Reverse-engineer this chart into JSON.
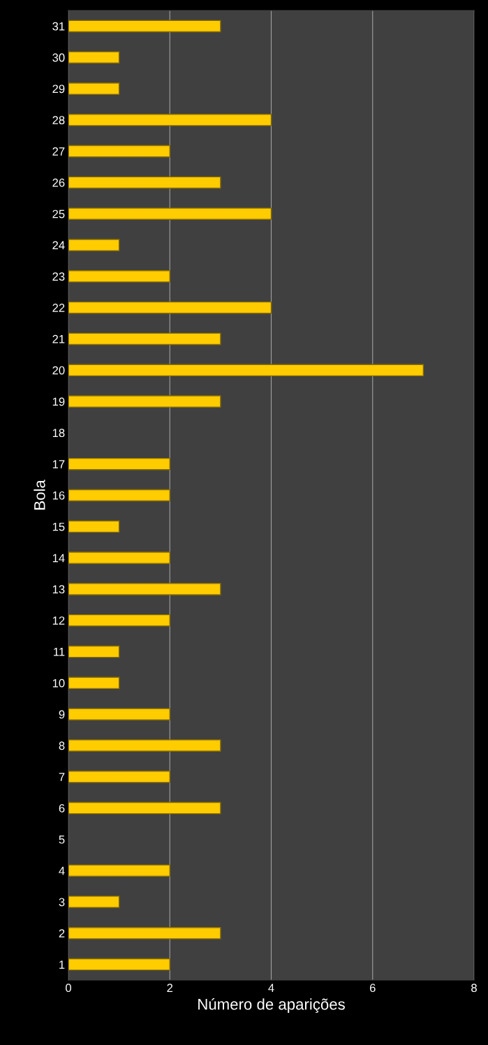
{
  "chart_data": {
    "type": "bar",
    "orientation": "horizontal",
    "xlabel": "Número de aparições",
    "ylabel": "Bola",
    "categories": [
      "31",
      "30",
      "29",
      "28",
      "27",
      "26",
      "25",
      "24",
      "23",
      "22",
      "21",
      "20",
      "19",
      "18",
      "17",
      "16",
      "15",
      "14",
      "13",
      "12",
      "11",
      "10",
      "9",
      "8",
      "7",
      "6",
      "5",
      "4",
      "3",
      "2",
      "1"
    ],
    "values": [
      3,
      1,
      1,
      4,
      2,
      3,
      4,
      1,
      2,
      4,
      3,
      7,
      3,
      0,
      2,
      2,
      1,
      2,
      3,
      2,
      1,
      1,
      2,
      3,
      2,
      3,
      0,
      2,
      1,
      3,
      2
    ],
    "color": "#ffcc00",
    "xlim": [
      0,
      8
    ],
    "xticks": [
      0,
      2,
      4,
      6,
      8
    ],
    "grid": "x",
    "legend": false
  }
}
